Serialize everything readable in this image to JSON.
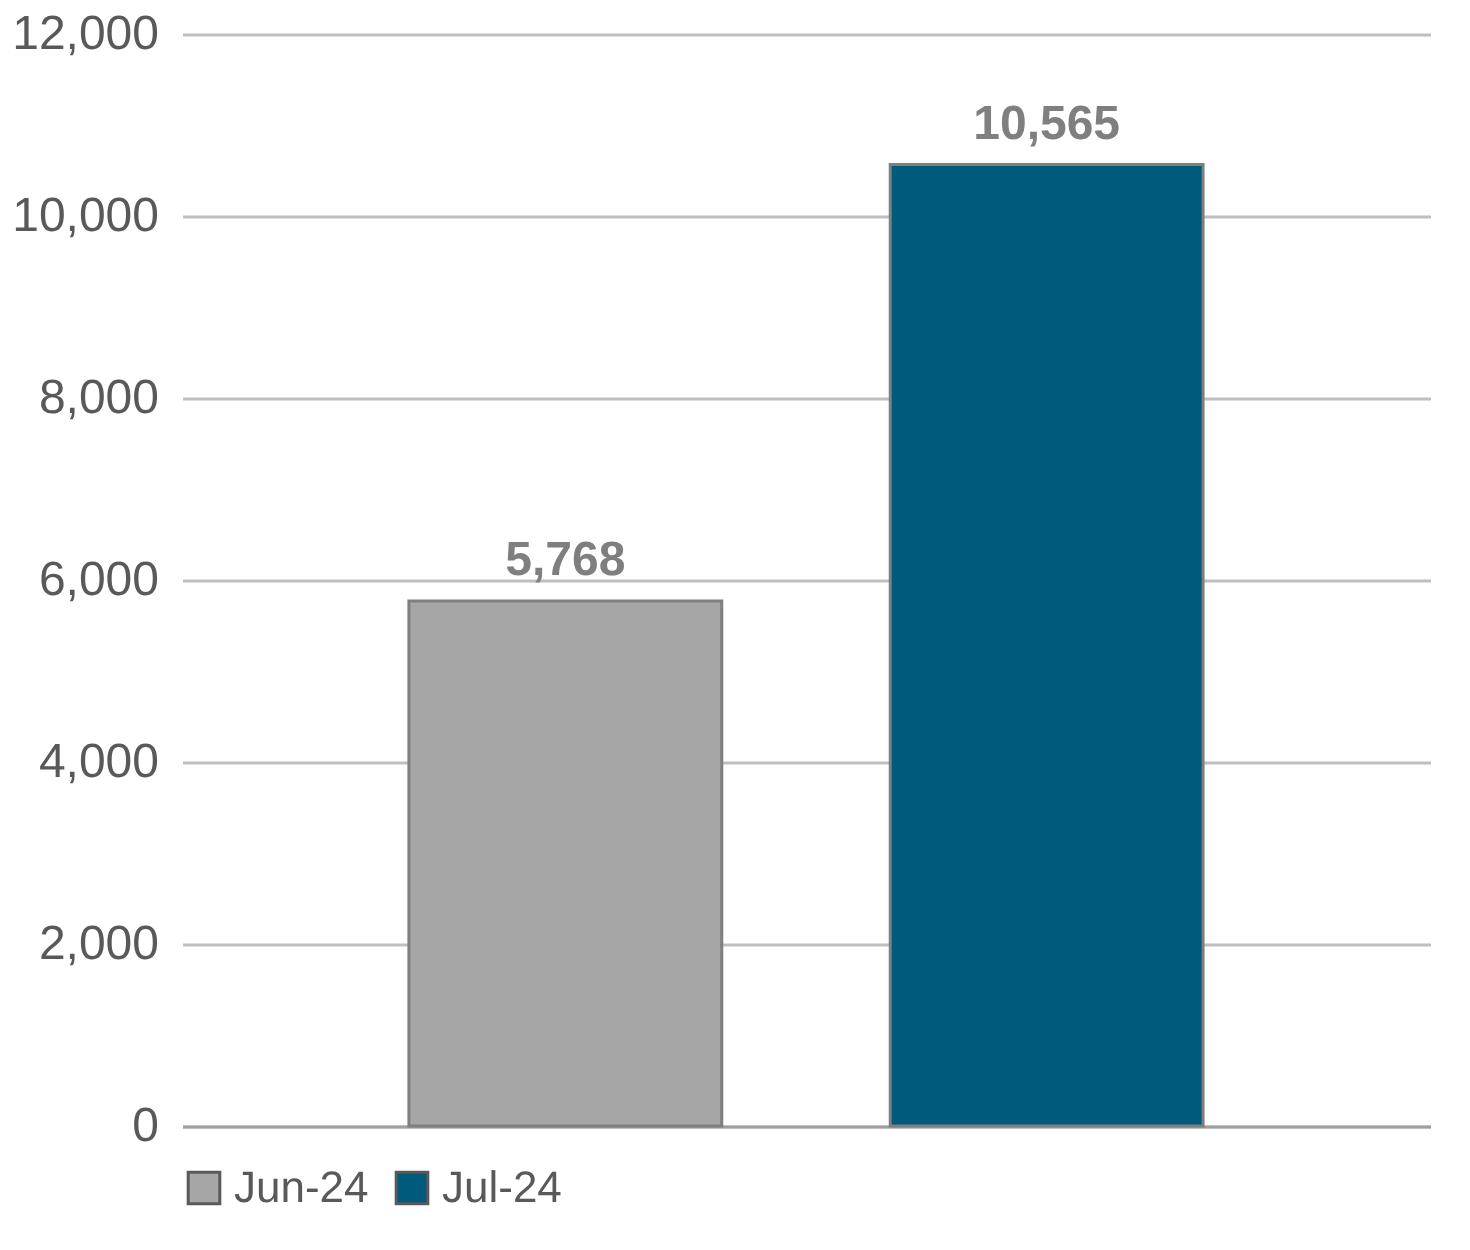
{
  "chart_data": {
    "type": "bar",
    "categories": [
      null
    ],
    "series": [
      {
        "name": "Jun-24",
        "color": "#a6a6a6",
        "values": [
          5768
        ],
        "value_labels": [
          "5,768"
        ]
      },
      {
        "name": "Jul-24",
        "color": "#005a7c",
        "values": [
          10565
        ],
        "value_labels": [
          "10,565"
        ]
      }
    ],
    "ylim": [
      0,
      12000
    ],
    "yticks": [
      0,
      {
        "value": 2000,
        "label": "2,000"
      },
      {
        "value": 4000,
        "label": "4,000"
      },
      {
        "value": 6000,
        "label": "6,000"
      },
      {
        "value": 8000,
        "label": "8,000"
      },
      {
        "value": 10000,
        "label": "10,000"
      },
      {
        "value": 12000,
        "label": "12,000"
      }
    ],
    "grid": "y",
    "legend": "bottom"
  }
}
